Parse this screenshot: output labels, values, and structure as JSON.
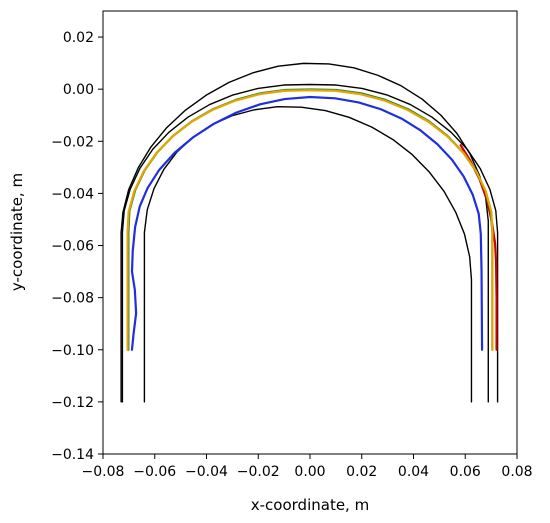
{
  "chart_data": {
    "type": "line",
    "title": "",
    "xlabel": "x-coordinate, m",
    "ylabel": "y-coordinate, m",
    "xlim": [
      -0.08,
      0.08
    ],
    "ylim": [
      -0.14,
      0.03
    ],
    "x_ticks": [
      -0.08,
      -0.06,
      -0.04,
      -0.02,
      0.0,
      0.02,
      0.04,
      0.06,
      0.08
    ],
    "x_tick_labels": [
      "−0.08",
      "−0.06",
      "−0.04",
      "−0.02",
      "0.00",
      "0.02",
      "0.04",
      "0.06",
      "0.08"
    ],
    "y_ticks": [
      -0.14,
      -0.12,
      -0.1,
      -0.08,
      -0.06,
      -0.04,
      -0.02,
      0.0,
      0.02
    ],
    "y_tick_labels": [
      "−0.14",
      "−0.12",
      "−0.10",
      "−0.08",
      "−0.06",
      "−0.04",
      "−0.02",
      "0.00",
      "0.02"
    ],
    "grid": false,
    "series": [
      {
        "color": "#000000",
        "x": [
          -0.073,
          -0.073,
          -0.0723,
          -0.0701,
          -0.0664,
          -0.0615,
          -0.0554,
          -0.0482,
          -0.0401,
          -0.0313,
          -0.022,
          -0.0123,
          -0.0025,
          0.0073,
          0.017,
          0.0263,
          0.0352,
          0.0433,
          0.0506,
          0.0568,
          0.0618,
          0.0655,
          0.0679,
          0.0689,
          0.0689,
          0.0689
        ],
        "y": [
          -0.12,
          -0.055,
          -0.0473,
          -0.0386,
          -0.0302,
          -0.0222,
          -0.0148,
          -0.0081,
          -0.0023,
          0.0026,
          0.0063,
          0.0088,
          0.0099,
          0.0097,
          0.0082,
          0.0053,
          0.0013,
          -0.0038,
          -0.01,
          -0.017,
          -0.0248,
          -0.0331,
          -0.0417,
          -0.0505,
          -0.055,
          -0.12
        ]
      },
      {
        "color": "#000000",
        "x": [
          -0.064,
          -0.064,
          -0.0629,
          -0.0603,
          -0.0565,
          -0.0514,
          -0.0452,
          -0.038,
          -0.0301,
          -0.0215,
          -0.0126,
          -0.0034,
          0.0059,
          0.0151,
          0.0238,
          0.032,
          0.0395,
          0.0461,
          0.0518,
          0.0563,
          0.0597,
          0.0617,
          0.0624,
          0.0624
        ],
        "y": [
          -0.12,
          -0.055,
          -0.0463,
          -0.0382,
          -0.0308,
          -0.0241,
          -0.0184,
          -0.0137,
          -0.0102,
          -0.0079,
          -0.0067,
          -0.0069,
          -0.0082,
          -0.0108,
          -0.0145,
          -0.0193,
          -0.0251,
          -0.0318,
          -0.0392,
          -0.0472,
          -0.0556,
          -0.0643,
          -0.073,
          -0.12
        ]
      },
      {
        "color": "#000000",
        "x": [
          -0.0725,
          -0.0725,
          -0.0718,
          -0.0695,
          -0.0658,
          -0.0608,
          -0.0545,
          -0.0471,
          -0.0388,
          -0.0297,
          -0.0201,
          -0.0101,
          0.0,
          0.0101,
          0.0201,
          0.0297,
          0.0388,
          0.0471,
          0.0545,
          0.0608,
          0.0658,
          0.0695,
          0.0718,
          0.0725,
          0.0725
        ],
        "y": [
          -0.12,
          -0.055,
          -0.0466,
          -0.0384,
          -0.0305,
          -0.0231,
          -0.0165,
          -0.0107,
          -0.0059,
          -0.0022,
          0.0003,
          0.0016,
          0.0018,
          0.0016,
          0.0003,
          -0.0022,
          -0.0059,
          -0.0107,
          -0.0165,
          -0.0231,
          -0.0305,
          -0.0384,
          -0.0466,
          -0.055,
          -0.12
        ]
      },
      {
        "color": "#cc0000",
        "x": [
          0.0582,
          0.062,
          0.0655,
          0.0684,
          0.0703,
          0.0715,
          0.0719,
          0.0721,
          0.0721
        ],
        "y": [
          -0.0215,
          -0.0275,
          -0.0345,
          -0.0425,
          -0.051,
          -0.059,
          -0.066,
          -0.08,
          -0.1
        ]
      },
      {
        "color": "#2e7d32",
        "x": [
          -0.0702,
          -0.0702,
          -0.0698,
          -0.0676,
          -0.064,
          -0.0591,
          -0.0529,
          -0.0456,
          -0.0375,
          -0.0286,
          -0.0192,
          -0.0095,
          0.0003,
          0.0101,
          0.0198,
          0.0291,
          0.0379,
          0.0459,
          0.0531,
          0.0592,
          0.0641,
          0.0677,
          0.0698,
          0.0705,
          0.0705
        ],
        "y": [
          -0.1,
          -0.055,
          -0.0468,
          -0.0388,
          -0.0313,
          -0.0243,
          -0.0179,
          -0.0123,
          -0.0077,
          -0.0041,
          -0.0016,
          -0.0003,
          -0.0001,
          -0.0003,
          -0.0016,
          -0.0041,
          -0.0077,
          -0.0123,
          -0.0179,
          -0.0243,
          -0.0313,
          -0.0388,
          -0.0468,
          -0.055,
          -0.1
        ]
      },
      {
        "color": "#e0a800",
        "x": [
          -0.0705,
          -0.0705,
          -0.0701,
          -0.0679,
          -0.0643,
          -0.0594,
          -0.0532,
          -0.0459,
          -0.0378,
          -0.0289,
          -0.0195,
          -0.0098,
          0.0,
          0.0098,
          0.0195,
          0.0289,
          0.0378,
          0.0459,
          0.0532,
          0.0594,
          0.0643,
          0.0679,
          0.0701,
          0.0705,
          0.0705
        ],
        "y": [
          -0.1,
          -0.055,
          -0.0471,
          -0.0391,
          -0.0316,
          -0.0246,
          -0.0182,
          -0.0126,
          -0.008,
          -0.0044,
          -0.0019,
          -0.0006,
          -0.0004,
          -0.0006,
          -0.0019,
          -0.0044,
          -0.008,
          -0.0126,
          -0.0182,
          -0.0246,
          -0.0316,
          -0.0391,
          -0.0471,
          -0.055,
          -0.1
        ]
      },
      {
        "color": "#1f2fe0",
        "x": [
          -0.0688,
          -0.0682,
          -0.0672,
          -0.0677,
          -0.0688,
          -0.0685,
          -0.0676,
          -0.0658,
          -0.0628,
          -0.0583,
          -0.0524,
          -0.0452,
          -0.0372,
          -0.0285,
          -0.0193,
          -0.0098,
          0.0,
          0.0097,
          0.0188,
          0.0274,
          0.0354,
          0.0427,
          0.0492,
          0.0548,
          0.0594,
          0.0629,
          0.0652,
          0.066,
          0.0663,
          0.0665
        ],
        "y": [
          -0.1,
          -0.094,
          -0.086,
          -0.077,
          -0.07,
          -0.062,
          -0.053,
          -0.045,
          -0.038,
          -0.031,
          -0.0245,
          -0.0185,
          -0.0133,
          -0.009,
          -0.0058,
          -0.0038,
          -0.003,
          -0.0035,
          -0.0051,
          -0.0077,
          -0.0113,
          -0.0158,
          -0.0211,
          -0.027,
          -0.0335,
          -0.0405,
          -0.0478,
          -0.0555,
          -0.07,
          -0.1
        ]
      }
    ]
  }
}
